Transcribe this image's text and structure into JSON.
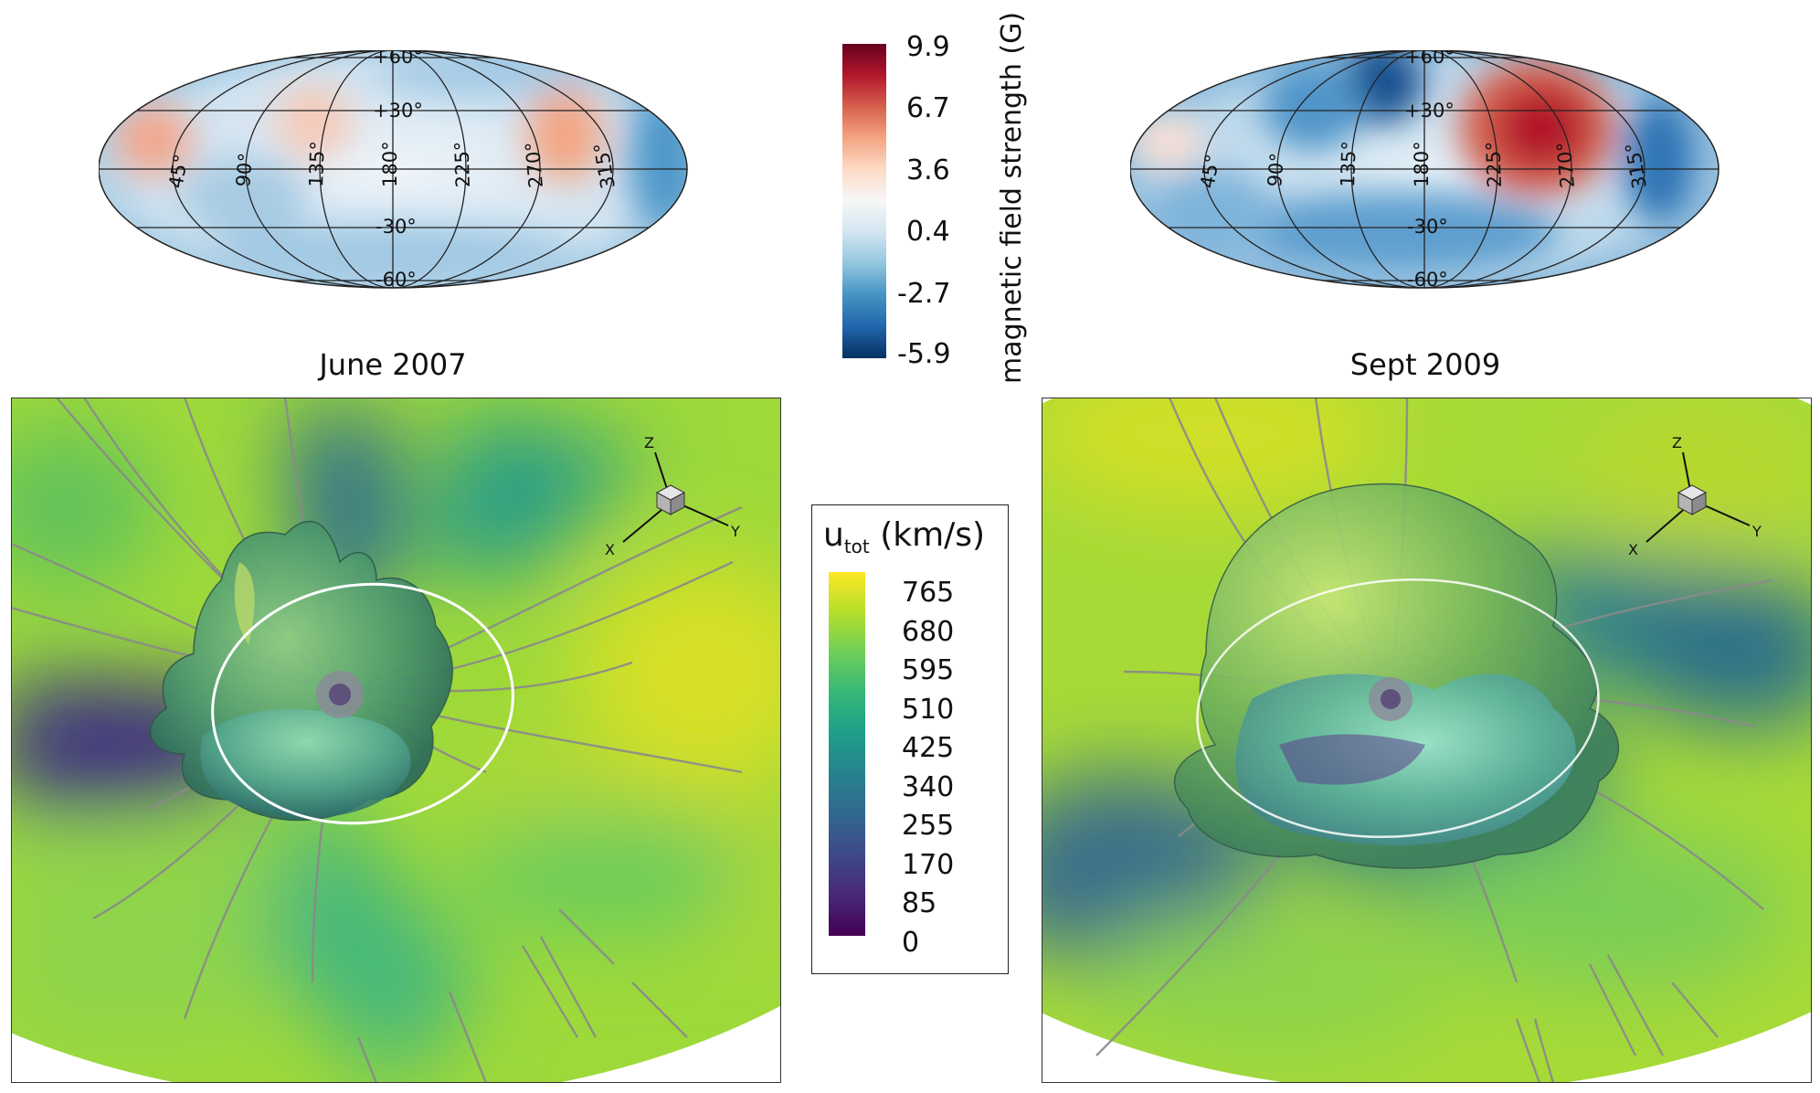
{
  "left_panel": {
    "caption": "June 2007",
    "map": {
      "lat_labels": [
        "+60°",
        "+30°",
        "-30°",
        "-60°"
      ],
      "lon_labels": [
        "45°",
        "90°",
        "135°",
        "180°",
        "225°",
        "270°",
        "315°"
      ]
    }
  },
  "right_panel": {
    "caption": "Sept 2009",
    "map": {
      "lat_labels": [
        "+60°",
        "+30°",
        "-30°",
        "-60°"
      ],
      "lon_labels": [
        "45°",
        "90°",
        "135°",
        "180°",
        "225°",
        "270°",
        "315°"
      ]
    }
  },
  "magnetic_colorbar": {
    "label": "magnetic field strength (G)",
    "ticks": [
      "9.9",
      "6.7",
      "3.6",
      "0.4",
      "-2.7",
      "-5.9"
    ],
    "colors": [
      "#67001f",
      "#b2182b",
      "#d6604d",
      "#f4a582",
      "#fddbc7",
      "#f7f7f7",
      "#d1e5f0",
      "#92c5de",
      "#4393c3",
      "#2166ac",
      "#053061"
    ]
  },
  "velocity_legend": {
    "label_u": "u",
    "label_sub": "tot",
    "label_unit": " (km/s)",
    "ticks": [
      "765",
      "680",
      "595",
      "510",
      "425",
      "340",
      "255",
      "170",
      "85",
      "0"
    ],
    "colors": [
      "#fde725",
      "#b5de2b",
      "#6ece58",
      "#35b779",
      "#1f9e89",
      "#26828e",
      "#31688e",
      "#3e4989",
      "#482878",
      "#440154"
    ]
  },
  "axes_triad": {
    "x": "X",
    "y": "Y",
    "z": "Z"
  }
}
